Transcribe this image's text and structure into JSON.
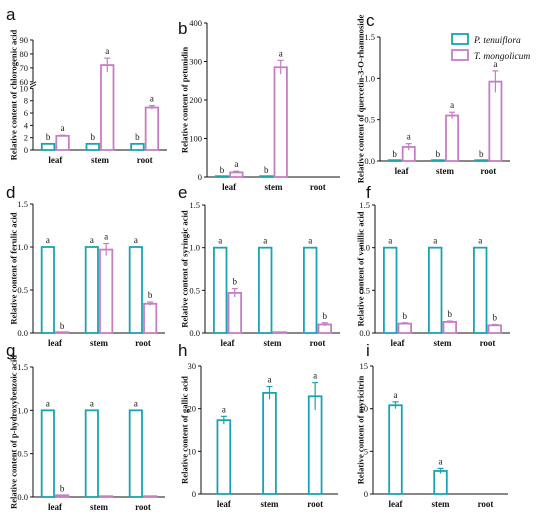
{
  "colors": {
    "p_tenuiflora": "#1aa3b3",
    "t_mongolicum": "#c77dc4",
    "axis": "#111111"
  },
  "legend": {
    "placement": "top-right",
    "p_label": "P. tenuiflora",
    "t_label": "T. mongolicum"
  },
  "chart_data": [
    {
      "panel": "a",
      "type": "bar",
      "ylabel": "Relative content of chlorogenic acid",
      "categories": [
        "leaf",
        "stem",
        "root"
      ],
      "ylim": [
        0,
        90
      ],
      "axis_break": [
        10,
        60
      ],
      "yticks": [
        "0",
        "2",
        "4",
        "6",
        "8",
        "10",
        "60",
        "70",
        "80",
        "90"
      ],
      "series": [
        {
          "name": "P. tenuiflora",
          "values": [
            1.0,
            1.0,
            1.0
          ],
          "errors": [
            0,
            0,
            0
          ],
          "sig": [
            "b",
            "b",
            "b"
          ]
        },
        {
          "name": "T. mongolicum",
          "values": [
            2.3,
            72,
            6.9
          ],
          "errors": [
            0.1,
            5,
            0.3
          ],
          "sig": [
            "a",
            "a",
            "a"
          ]
        }
      ]
    },
    {
      "panel": "b",
      "type": "bar",
      "ylabel": "Relative content of petunidin",
      "categories": [
        "leaf",
        "stem",
        "root"
      ],
      "ylim": [
        0,
        400
      ],
      "yticks": [
        "0",
        "100",
        "200",
        "300",
        "400"
      ],
      "series": [
        {
          "name": "P. tenuiflora",
          "values": [
            0,
            0,
            null
          ],
          "errors": [
            0,
            0,
            0
          ],
          "sig": [
            "b",
            "b",
            ""
          ]
        },
        {
          "name": "T. mongolicum",
          "values": [
            12,
            285,
            null
          ],
          "errors": [
            3,
            18,
            0
          ],
          "sig": [
            "a",
            "a",
            ""
          ]
        }
      ]
    },
    {
      "panel": "c",
      "type": "bar",
      "ylabel": "Relative content of quercetin-3-O-rhamnoside",
      "categories": [
        "leaf",
        "stem",
        "root"
      ],
      "ylim": [
        0,
        1.5
      ],
      "yticks": [
        "0.0",
        "0.5",
        "1.0",
        "1.5"
      ],
      "series": [
        {
          "name": "P. tenuiflora",
          "values": [
            0,
            0,
            0
          ],
          "errors": [
            0,
            0,
            0
          ],
          "sig": [
            "b",
            "b",
            "b"
          ]
        },
        {
          "name": "T. mongolicum",
          "values": [
            0.17,
            0.55,
            0.96
          ],
          "errors": [
            0.04,
            0.04,
            0.13
          ],
          "sig": [
            "a",
            "a",
            "a"
          ]
        }
      ]
    },
    {
      "panel": "d",
      "type": "bar",
      "ylabel": "Relative content of ferulic acid",
      "categories": [
        "leaf",
        "stem",
        "root"
      ],
      "ylim": [
        0,
        1.5
      ],
      "yticks": [
        "0.0",
        "0.5",
        "1.0",
        "1.5"
      ],
      "series": [
        {
          "name": "P. tenuiflora",
          "values": [
            1.0,
            1.0,
            1.0
          ],
          "errors": [
            0,
            0,
            0
          ],
          "sig": [
            "a",
            "a",
            "a"
          ]
        },
        {
          "name": "T. mongolicum",
          "values": [
            0,
            0.97,
            0.34
          ],
          "errors": [
            0,
            0.07,
            0.02
          ],
          "sig": [
            "b",
            "a",
            "b"
          ]
        }
      ]
    },
    {
      "panel": "e",
      "type": "bar",
      "ylabel": "Relative content of syringic acid",
      "categories": [
        "leaf",
        "stem",
        "root"
      ],
      "ylim": [
        0,
        1.5
      ],
      "yticks": [
        "0.0",
        "0.5",
        "1.0",
        "1.5"
      ],
      "series": [
        {
          "name": "P. tenuiflora",
          "values": [
            1.0,
            1.0,
            1.0
          ],
          "errors": [
            0,
            0,
            0
          ],
          "sig": [
            "a",
            "a",
            "a"
          ]
        },
        {
          "name": "T. mongolicum",
          "values": [
            0.47,
            0,
            0.1
          ],
          "errors": [
            0.05,
            0,
            0.02
          ],
          "sig": [
            "b",
            "",
            "b"
          ]
        }
      ]
    },
    {
      "panel": "f",
      "type": "bar",
      "ylabel": "Relative content of vanillic acid",
      "categories": [
        "leaf",
        "stem",
        "root"
      ],
      "ylim": [
        0,
        1.5
      ],
      "yticks": [
        "0.0",
        "0.5",
        "1.0",
        "1.5"
      ],
      "series": [
        {
          "name": "P. tenuiflora",
          "values": [
            1.0,
            1.0,
            1.0
          ],
          "errors": [
            0,
            0,
            0
          ],
          "sig": [
            "a",
            "a",
            "a"
          ]
        },
        {
          "name": "T. mongolicum",
          "values": [
            0.11,
            0.13,
            0.09
          ],
          "errors": [
            0.01,
            0.01,
            0.01
          ],
          "sig": [
            "b",
            "b",
            "b"
          ]
        }
      ]
    },
    {
      "panel": "g",
      "type": "bar",
      "ylabel": "Relative content of p-hydroxybenzoic acid",
      "categories": [
        "leaf",
        "stem",
        "root"
      ],
      "ylim": [
        0,
        1.5
      ],
      "yticks": [
        "0.0",
        "0.5",
        "1.0",
        "1.5"
      ],
      "series": [
        {
          "name": "P. tenuiflora",
          "values": [
            1.0,
            1.0,
            1.0
          ],
          "errors": [
            0,
            0,
            0
          ],
          "sig": [
            "a",
            "a",
            "a"
          ]
        },
        {
          "name": "T. mongolicum",
          "values": [
            0.02,
            0,
            0
          ],
          "errors": [
            0,
            0,
            0
          ],
          "sig": [
            "b",
            "",
            ""
          ]
        }
      ]
    },
    {
      "panel": "h",
      "type": "bar",
      "ylabel": "Relative content of gallic acid",
      "categories": [
        "leaf",
        "stem",
        "root"
      ],
      "ylim": [
        0,
        30
      ],
      "yticks": [
        "0",
        "10",
        "20",
        "30"
      ],
      "series": [
        {
          "name": "P. tenuiflora",
          "values": [
            17.3,
            23.7,
            22.9
          ],
          "errors": [
            0.9,
            1.5,
            3.2
          ],
          "sig": [
            "a",
            "a",
            "a"
          ]
        }
      ]
    },
    {
      "panel": "i",
      "type": "bar",
      "ylabel": "Relative content of myricitrin",
      "categories": [
        "leaf",
        "stem",
        "root"
      ],
      "ylim": [
        0,
        15
      ],
      "yticks": [
        "0",
        "5",
        "10",
        "15"
      ],
      "series": [
        {
          "name": "P. tenuiflora",
          "values": [
            10.4,
            2.7,
            null
          ],
          "errors": [
            0.4,
            0.3,
            0
          ],
          "sig": [
            "a",
            "a",
            ""
          ]
        }
      ]
    }
  ]
}
